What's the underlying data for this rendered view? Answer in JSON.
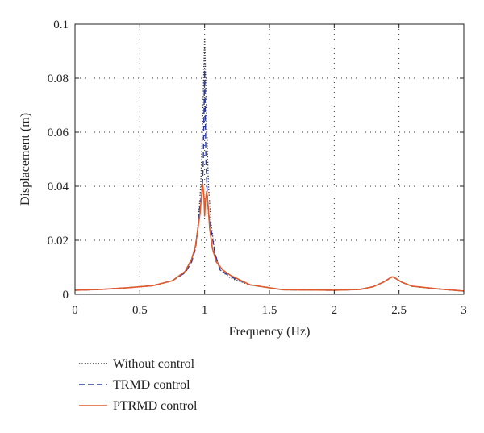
{
  "chart_data": {
    "type": "line",
    "title": "",
    "xlabel": "Frequency (Hz)",
    "ylabel": "Displacement (m)",
    "xlim": [
      0,
      3
    ],
    "ylim": [
      0,
      0.1
    ],
    "grid": true,
    "grid_style": "dotted",
    "legend_placement": "below-left",
    "x_ticks": [
      {
        "v": 0,
        "label": "0"
      },
      {
        "v": 0.5,
        "label": "0.5"
      },
      {
        "v": 1,
        "label": "1"
      },
      {
        "v": 1.5,
        "label": "1.5"
      },
      {
        "v": 2,
        "label": "2"
      },
      {
        "v": 2.5,
        "label": "2.5"
      },
      {
        "v": 3,
        "label": "3"
      }
    ],
    "y_ticks": [
      {
        "v": 0,
        "label": "0"
      },
      {
        "v": 0.02,
        "label": "0.02"
      },
      {
        "v": 0.04,
        "label": "0.04"
      },
      {
        "v": 0.06,
        "label": "0.06"
      },
      {
        "v": 0.08,
        "label": "0.08"
      },
      {
        "v": 0.1,
        "label": "0.1"
      }
    ],
    "series": [
      {
        "name": "Without control",
        "color": "#333344",
        "style": "dotted",
        "points": [
          [
            0,
            0.0015
          ],
          [
            0.2,
            0.0018
          ],
          [
            0.4,
            0.0024
          ],
          [
            0.6,
            0.0032
          ],
          [
            0.75,
            0.005
          ],
          [
            0.85,
            0.0085
          ],
          [
            0.9,
            0.013
          ],
          [
            0.93,
            0.018
          ],
          [
            0.95,
            0.026
          ],
          [
            0.97,
            0.04
          ],
          [
            0.98,
            0.055
          ],
          [
            0.99,
            0.075
          ],
          [
            1.0,
            0.095
          ],
          [
            1.01,
            0.075
          ],
          [
            1.02,
            0.055
          ],
          [
            1.03,
            0.04
          ],
          [
            1.05,
            0.026
          ],
          [
            1.08,
            0.015
          ],
          [
            1.12,
            0.009
          ],
          [
            1.2,
            0.006
          ],
          [
            1.35,
            0.0035
          ],
          [
            1.6,
            0.0017
          ],
          [
            2.0,
            0.0015
          ],
          [
            2.2,
            0.0018
          ],
          [
            2.3,
            0.0028
          ],
          [
            2.38,
            0.0045
          ],
          [
            2.43,
            0.006
          ],
          [
            2.45,
            0.0065
          ],
          [
            2.47,
            0.006
          ],
          [
            2.52,
            0.0045
          ],
          [
            2.6,
            0.003
          ],
          [
            2.8,
            0.002
          ],
          [
            3.0,
            0.0012
          ]
        ]
      },
      {
        "name": "TRMD control",
        "color": "#2b3a9c",
        "style": "dashed",
        "points": [
          [
            0,
            0.0015
          ],
          [
            0.2,
            0.0018
          ],
          [
            0.4,
            0.0024
          ],
          [
            0.6,
            0.0032
          ],
          [
            0.75,
            0.005
          ],
          [
            0.85,
            0.008
          ],
          [
            0.9,
            0.012
          ],
          [
            0.93,
            0.017
          ],
          [
            0.95,
            0.025
          ],
          [
            0.965,
            0.034
          ],
          [
            0.975,
            0.036
          ],
          [
            0.985,
            0.042
          ],
          [
            0.99,
            0.05
          ],
          [
            1.0,
            0.083
          ],
          [
            1.01,
            0.05
          ],
          [
            1.02,
            0.037
          ],
          [
            1.03,
            0.03
          ],
          [
            1.05,
            0.024
          ],
          [
            1.08,
            0.015
          ],
          [
            1.12,
            0.009
          ],
          [
            1.2,
            0.0065
          ],
          [
            1.35,
            0.0035
          ],
          [
            1.6,
            0.0017
          ],
          [
            2.0,
            0.0015
          ],
          [
            2.2,
            0.0018
          ],
          [
            2.3,
            0.0028
          ],
          [
            2.38,
            0.0045
          ],
          [
            2.43,
            0.006
          ],
          [
            2.45,
            0.0065
          ],
          [
            2.47,
            0.006
          ],
          [
            2.52,
            0.0045
          ],
          [
            2.6,
            0.003
          ],
          [
            2.8,
            0.002
          ],
          [
            3.0,
            0.0012
          ]
        ]
      },
      {
        "name": "PTRMD control",
        "color": "#e05a2b",
        "style": "solid",
        "points": [
          [
            0,
            0.0015
          ],
          [
            0.2,
            0.0018
          ],
          [
            0.4,
            0.0024
          ],
          [
            0.6,
            0.0032
          ],
          [
            0.75,
            0.005
          ],
          [
            0.85,
            0.0085
          ],
          [
            0.9,
            0.013
          ],
          [
            0.93,
            0.018
          ],
          [
            0.95,
            0.025
          ],
          [
            0.965,
            0.03
          ],
          [
            0.975,
            0.036
          ],
          [
            0.985,
            0.041
          ],
          [
            0.995,
            0.036
          ],
          [
            1.0,
            0.029
          ],
          [
            1.005,
            0.034
          ],
          [
            1.015,
            0.038
          ],
          [
            1.025,
            0.034
          ],
          [
            1.04,
            0.024
          ],
          [
            1.06,
            0.017
          ],
          [
            1.09,
            0.012
          ],
          [
            1.14,
            0.009
          ],
          [
            1.2,
            0.007
          ],
          [
            1.35,
            0.0035
          ],
          [
            1.6,
            0.0017
          ],
          [
            2.0,
            0.0015
          ],
          [
            2.2,
            0.0018
          ],
          [
            2.3,
            0.0028
          ],
          [
            2.38,
            0.0045
          ],
          [
            2.43,
            0.006
          ],
          [
            2.45,
            0.0065
          ],
          [
            2.47,
            0.006
          ],
          [
            2.52,
            0.0045
          ],
          [
            2.6,
            0.003
          ],
          [
            2.8,
            0.002
          ],
          [
            3.0,
            0.0012
          ]
        ]
      }
    ]
  }
}
